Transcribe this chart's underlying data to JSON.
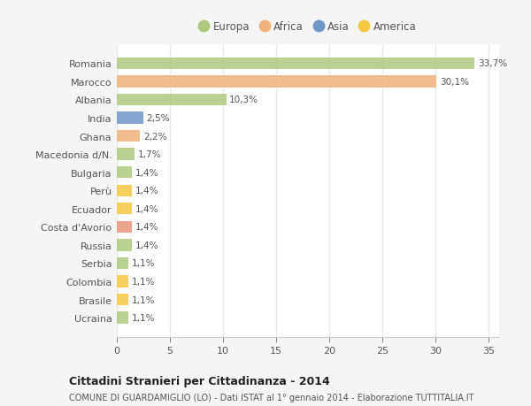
{
  "categories": [
    "Romania",
    "Marocco",
    "Albania",
    "India",
    "Ghana",
    "Macedonia d/N.",
    "Bulgaria",
    "Perù",
    "Ecuador",
    "Costa d'Avorio",
    "Russia",
    "Serbia",
    "Colombia",
    "Brasile",
    "Ucraina"
  ],
  "values": [
    33.7,
    30.1,
    10.3,
    2.5,
    2.2,
    1.7,
    1.4,
    1.4,
    1.4,
    1.4,
    1.4,
    1.1,
    1.1,
    1.1,
    1.1
  ],
  "labels": [
    "33,7%",
    "30,1%",
    "10,3%",
    "2,5%",
    "2,2%",
    "1,7%",
    "1,4%",
    "1,4%",
    "1,4%",
    "1,4%",
    "1,4%",
    "1,1%",
    "1,1%",
    "1,1%",
    "1,1%"
  ],
  "colors": [
    "#adc97e",
    "#f0b27a",
    "#adc97e",
    "#7097c8",
    "#f0b27a",
    "#adc97e",
    "#adc97e",
    "#f5c842",
    "#f5c842",
    "#e8967a",
    "#adc97e",
    "#adc97e",
    "#f5c842",
    "#f5c842",
    "#adc97e"
  ],
  "legend_labels": [
    "Europa",
    "Africa",
    "Asia",
    "America"
  ],
  "legend_colors": [
    "#adc97e",
    "#f0b27a",
    "#7097c8",
    "#f5c842"
  ],
  "title": "Cittadini Stranieri per Cittadinanza - 2014",
  "subtitle": "COMUNE DI GUARDAMIGLIO (LO) - Dati ISTAT al 1° gennaio 2014 - Elaborazione TUTTITALIA.IT",
  "xlim": [
    0,
    36
  ],
  "xticks": [
    0,
    5,
    10,
    15,
    20,
    25,
    30,
    35
  ],
  "plot_bg_color": "#ffffff",
  "fig_bg_color": "#f5f5f5",
  "grid_color": "#e8e8e8",
  "bar_height": 0.65
}
